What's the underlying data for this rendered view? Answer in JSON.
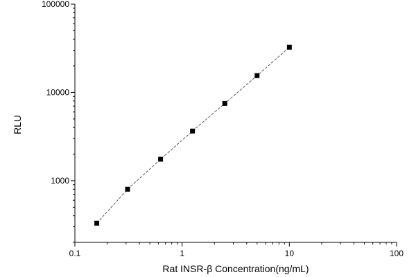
{
  "chart_data": {
    "type": "scatter",
    "title": "",
    "xlabel": "Rat INSR-β  Concentration(ng/mL)",
    "ylabel": "RLU",
    "xscale": "log",
    "yscale": "log",
    "xlim": [
      0.1,
      100
    ],
    "ylim": [
      200,
      100000
    ],
    "grid": false,
    "legend": "none",
    "x_ticks": [
      0.1,
      1,
      10,
      100
    ],
    "x_tick_labels": [
      "0.1",
      "1",
      "10",
      "100"
    ],
    "y_ticks": [
      1000,
      10000,
      100000
    ],
    "y_tick_labels": [
      "1000",
      "10000",
      "100000"
    ],
    "fit_line": true,
    "series": [
      {
        "marker": "square",
        "x": [
          0.16,
          0.31,
          0.63,
          1.25,
          2.5,
          5,
          10
        ],
        "y": [
          330,
          800,
          1750,
          3650,
          7500,
          15500,
          32500
        ]
      }
    ]
  }
}
